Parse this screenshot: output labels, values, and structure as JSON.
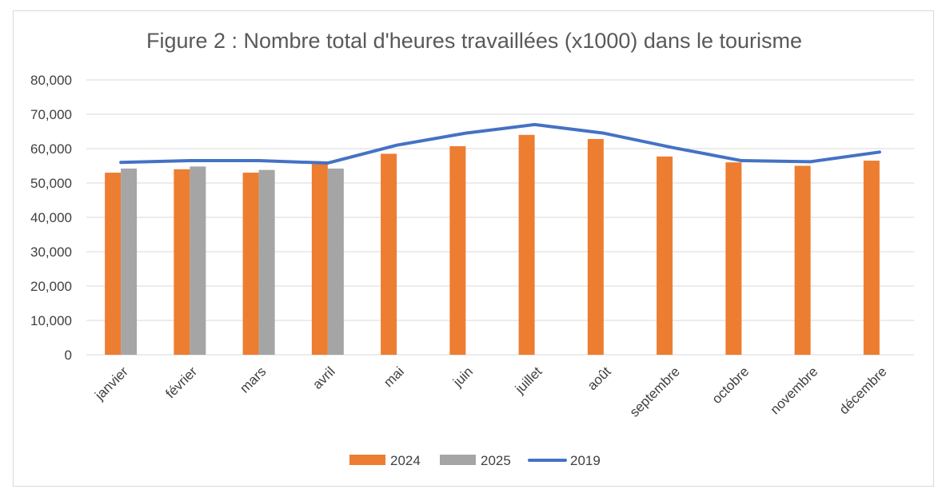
{
  "chart_data": {
    "type": "bar",
    "title": "Figure 2 : Nombre total d'heures travaillées (x1000) dans le tourisme",
    "categories": [
      "janvier",
      "février",
      "mars",
      "avril",
      "mai",
      "juin",
      "juillet",
      "août",
      "septembre",
      "octobre",
      "novembre",
      "décembre"
    ],
    "y_ticks": [
      "0",
      "10,000",
      "20,000",
      "30,000",
      "40,000",
      "50,000",
      "60,000",
      "70,000",
      "80,000"
    ],
    "ylim": [
      0,
      80000
    ],
    "grid": true,
    "legend_position": "bottom",
    "series": [
      {
        "name": "2024",
        "kind": "bar",
        "color": "#ED7D31",
        "values": [
          53000,
          54000,
          53000,
          55500,
          58500,
          60700,
          64000,
          62800,
          57700,
          56000,
          55000,
          56500
        ]
      },
      {
        "name": "2025",
        "kind": "bar",
        "color": "#A5A5A5",
        "values": [
          54200,
          54800,
          53800,
          54200,
          null,
          null,
          null,
          null,
          null,
          null,
          null,
          null
        ]
      },
      {
        "name": "2019",
        "kind": "line",
        "color": "#4472C4",
        "values": [
          56000,
          56500,
          56500,
          55800,
          61000,
          64500,
          67000,
          64500,
          60300,
          56500,
          56200,
          59000
        ]
      }
    ]
  }
}
